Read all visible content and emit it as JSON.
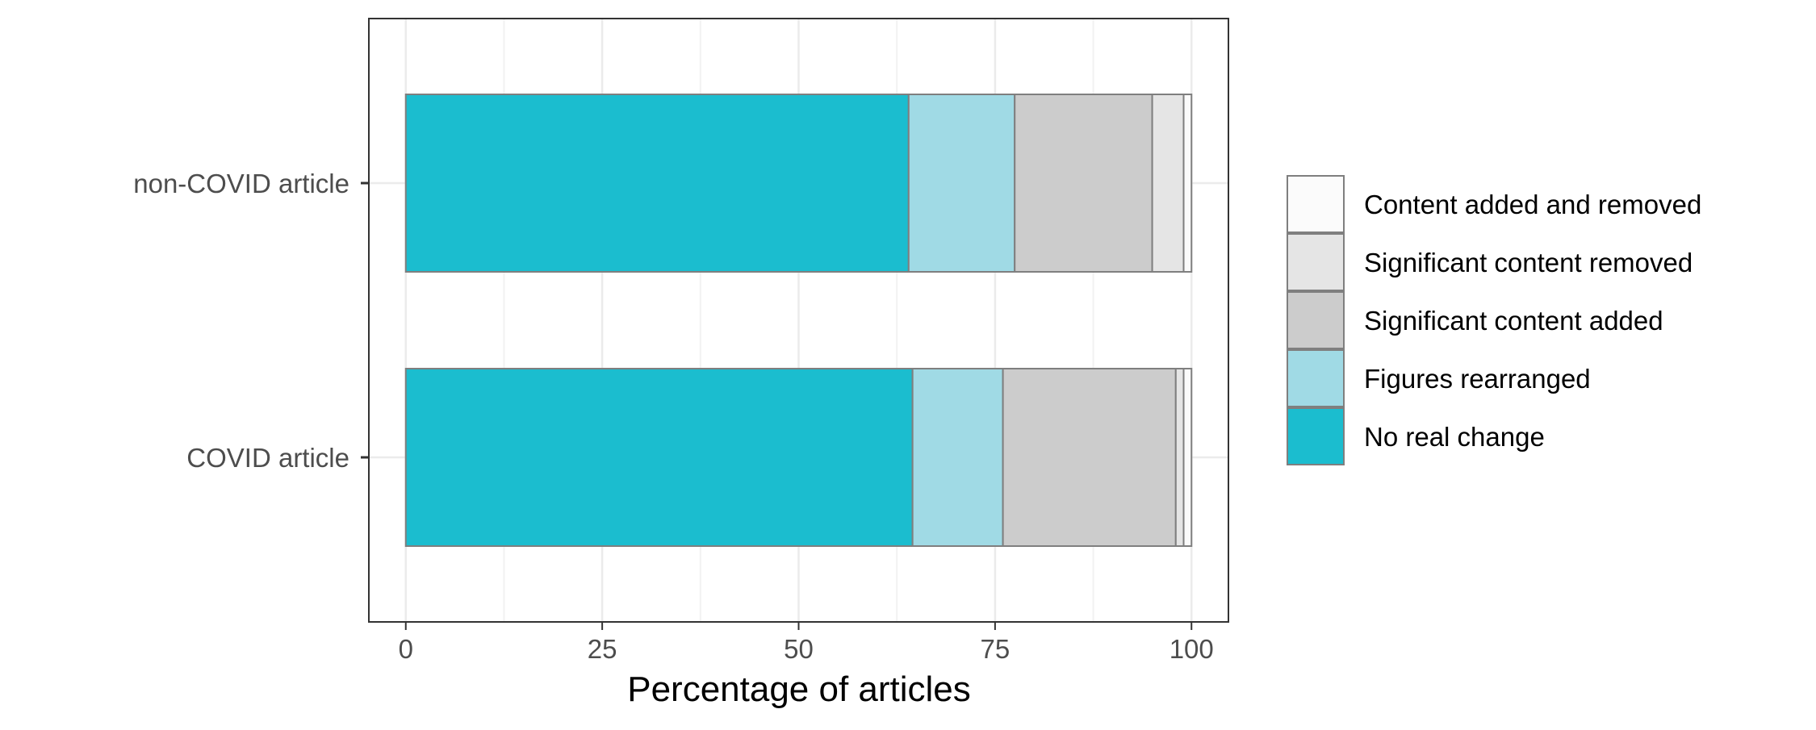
{
  "chart_data": {
    "type": "bar",
    "orientation": "horizontal",
    "stacked": true,
    "title": "",
    "xlabel": "Percentage of articles",
    "ylabel": "",
    "xlim": [
      -4.7,
      104.7
    ],
    "xticks": [
      0,
      25,
      50,
      75,
      100
    ],
    "grid": true,
    "legend_position": "right",
    "categories": [
      "non-COVID article",
      "COVID article"
    ],
    "series": [
      {
        "name": "No real change",
        "color": "#1BBDCF",
        "values": [
          64.0,
          64.5
        ]
      },
      {
        "name": "Figures rearranged",
        "color": "#A0DAE5",
        "values": [
          13.5,
          11.5
        ]
      },
      {
        "name": "Significant content added",
        "color": "#CCCCCC",
        "values": [
          17.5,
          22.0
        ]
      },
      {
        "name": "Significant content removed",
        "color": "#E5E5E5",
        "values": [
          4.0,
          1.0
        ]
      },
      {
        "name": "Content added and removed",
        "color": "#FBFBFB",
        "values": [
          1.0,
          1.0
        ]
      }
    ],
    "legend_order": [
      "Content added and removed",
      "Significant content removed",
      "Significant content added",
      "Figures rearranged",
      "No real change"
    ]
  }
}
